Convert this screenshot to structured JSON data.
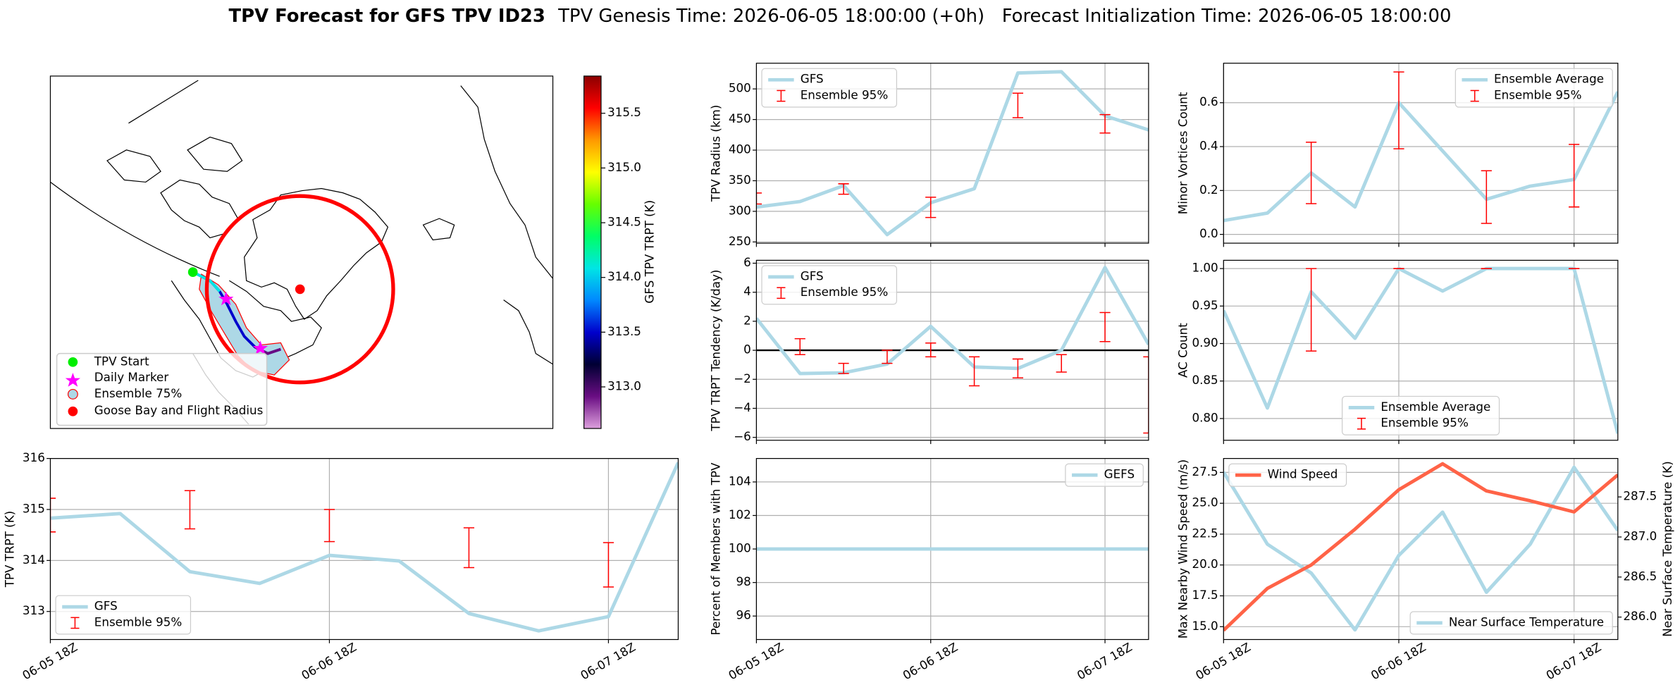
{
  "suptitle": "TPV Forecast for GFS TPV ID23",
  "subtitle": "TPV Genesis Time: 2026-06-05 18:00:00 (+0h)   Forecast Initialization Time: 2026-06-05 18:00:00",
  "map": {
    "legend": [
      "TPV Start",
      "Daily Marker",
      "Ensemble 75%",
      "Goose Bay and Flight Radius"
    ],
    "colorbar": {
      "label": "GFS TPV TRPT (K)",
      "lim": [
        312.62,
        315.84
      ],
      "ticks": [
        {
          "value": 313,
          "label": "313.0"
        },
        313.5,
        {
          "value": 314,
          "label": "314.0"
        },
        314.5,
        {
          "value": 315,
          "label": "315.0"
        },
        315.5
      ],
      "colors": [
        "#dda0dd",
        "#6a0d83",
        "#000033",
        "#0000cc",
        "#0088ff",
        "#00e5e5",
        "#00ff66",
        "#66ff00",
        "#ffff00",
        "#ff9900",
        "#ff0000",
        "#8b0000"
      ]
    }
  },
  "chart_data": [
    {
      "type": "line",
      "ylabel": "TPV Radius (km)",
      "x": [
        0,
        6,
        12,
        18,
        24,
        30,
        36,
        42,
        48,
        54
      ],
      "xlim": [
        0,
        54
      ],
      "xticks": [
        0,
        24,
        48
      ],
      "ylim": [
        248,
        542
      ],
      "yticks": [
        250,
        300,
        350,
        400,
        450,
        500
      ],
      "grid": true,
      "legend": "upper left",
      "series": [
        {
          "name": "GFS",
          "color": "#add8e6",
          "values": [
            307,
            316,
            342,
            262,
            314,
            337,
            526,
            528,
            456,
            433
          ]
        }
      ],
      "errorbars": {
        "name": "Ensemble 95%",
        "color": "#ff0000",
        "x": [
          0,
          12,
          24,
          36,
          48
        ],
        "low": [
          312,
          328,
          290,
          453,
          428
        ],
        "high": [
          330,
          345,
          323,
          493,
          458
        ]
      }
    },
    {
      "type": "line",
      "ylabel": "Minor Vortices Count",
      "x": [
        0,
        6,
        12,
        18,
        24,
        30,
        36,
        42,
        48,
        54
      ],
      "xlim": [
        0,
        54
      ],
      "xticks": [
        0,
        24,
        48
      ],
      "ylim": [
        -0.04,
        0.78
      ],
      "yticks": [
        {
          "value": 0,
          "label": "0.0"
        },
        0.2,
        0.4,
        0.6
      ],
      "grid": true,
      "legend": "upper right",
      "series": [
        {
          "name": "Ensemble Average",
          "color": "#add8e6",
          "values": [
            0.063,
            0.097,
            0.28,
            0.125,
            0.6,
            0.38,
            0.16,
            0.22,
            0.25,
            0.65
          ]
        }
      ],
      "errorbars": {
        "name": "Ensemble 95%",
        "color": "#ff0000",
        "x": [
          12,
          24,
          36,
          48
        ],
        "low": [
          0.14,
          0.39,
          0.05,
          0.125
        ],
        "high": [
          0.42,
          0.74,
          0.29,
          0.41
        ]
      }
    },
    {
      "type": "line",
      "ylabel": "TPV TRPT Tendency (K/day)",
      "x": [
        0,
        6,
        12,
        18,
        24,
        30,
        36,
        42,
        48,
        54
      ],
      "xlim": [
        0,
        54
      ],
      "xticks": [
        0,
        24,
        48
      ],
      "ylim": [
        -6.2,
        6.2
      ],
      "yticks": [
        {
          "value": -6,
          "label": "−6"
        },
        {
          "value": -4,
          "label": "−4"
        },
        {
          "value": -2,
          "label": "−2"
        },
        0,
        2,
        4,
        6
      ],
      "grid": true,
      "legend": "upper left",
      "hline": 0,
      "series": [
        {
          "name": "GFS",
          "color": "#add8e6",
          "values": [
            2.2,
            -1.6,
            -1.55,
            -0.95,
            1.65,
            -1.15,
            -1.25,
            0,
            5.7,
            0.4
          ]
        }
      ],
      "errorbars": {
        "name": "Ensemble 95%",
        "color": "#ff0000",
        "x": [
          6,
          12,
          18,
          24,
          30,
          36,
          42,
          48,
          54
        ],
        "low": [
          -0.3,
          -1.6,
          -0.9,
          -0.45,
          -2.45,
          -1.9,
          -1.5,
          0.6,
          -5.7
        ],
        "high": [
          0.8,
          -0.9,
          0,
          0.5,
          -0.45,
          -0.6,
          -0.3,
          2.6,
          -0.45
        ]
      }
    },
    {
      "type": "line",
      "ylabel": "AC Count",
      "x": [
        0,
        6,
        12,
        18,
        24,
        30,
        36,
        42,
        48,
        54
      ],
      "xlim": [
        0,
        54
      ],
      "xticks": [
        0,
        24,
        48
      ],
      "ylim": [
        0.771,
        1.011
      ],
      "yticks": [
        {
          "value": 0.8,
          "label": "0.80"
        },
        0.85,
        {
          "value": 0.9,
          "label": "0.90"
        },
        0.95,
        {
          "value": 1,
          "label": "1.00"
        }
      ],
      "grid": true,
      "legend": "lower center",
      "series": [
        {
          "name": "Ensemble Average",
          "color": "#add8e6",
          "values": [
            0.944,
            0.814,
            0.969,
            0.907,
            1.0,
            0.97,
            1.0,
            1.0,
            1.0,
            0.78
          ]
        }
      ],
      "errorbars": {
        "name": "Ensemble 95%",
        "color": "#ff0000",
        "x": [
          12,
          24,
          36,
          48
        ],
        "low": [
          0.89,
          1,
          1,
          1
        ],
        "high": [
          1,
          1,
          1,
          1
        ]
      }
    },
    {
      "type": "line",
      "ylabel": "TPV TRPT (K)",
      "x": [
        0,
        6,
        12,
        18,
        24,
        30,
        36,
        42,
        48,
        54
      ],
      "xlim": [
        0,
        54
      ],
      "xticks": [
        {
          "value": 0,
          "label": "06-05 18Z"
        },
        {
          "value": 24,
          "label": "06-06 18Z"
        },
        {
          "value": 48,
          "label": "06-07 18Z"
        }
      ],
      "ylim": [
        312.45,
        316
      ],
      "yticks": [
        313,
        314,
        315,
        316
      ],
      "grid": true,
      "legend": "lower left",
      "series": [
        {
          "name": "GFS",
          "color": "#add8e6",
          "values": [
            314.83,
            314.92,
            313.78,
            313.55,
            314.1,
            313.99,
            312.96,
            312.62,
            312.9,
            315.92
          ]
        }
      ],
      "errorbars": {
        "name": "Ensemble 95%",
        "color": "#ff0000",
        "x": [
          0,
          12,
          24,
          36,
          48
        ],
        "low": [
          314.56,
          314.62,
          314.37,
          313.86,
          313.48
        ],
        "high": [
          315.22,
          315.37,
          315.0,
          314.64,
          314.35
        ]
      }
    },
    {
      "type": "line",
      "ylabel": "Percent of Members with TPV",
      "x": [
        0,
        6,
        12,
        18,
        24,
        30,
        36,
        42,
        48,
        54
      ],
      "xlim": [
        0,
        54
      ],
      "xticks": [
        {
          "value": 0,
          "label": "06-05 18Z"
        },
        {
          "value": 24,
          "label": "06-06 18Z"
        },
        {
          "value": 48,
          "label": "06-07 18Z"
        }
      ],
      "ylim": [
        94.6,
        105.4
      ],
      "yticks": [
        96,
        98,
        100,
        102,
        104
      ],
      "grid": true,
      "legend": "upper right",
      "series": [
        {
          "name": "GEFS",
          "color": "#add8e6",
          "values": [
            100,
            100,
            100,
            100,
            100,
            100,
            100,
            100,
            100,
            100
          ]
        }
      ]
    },
    {
      "type": "line",
      "ylabel": "Max Nearby Wind Speed (m/s)",
      "ylabel_color": "#ff6347",
      "y2label": "Near Surface Temperature (K)",
      "y2label_color": "#4169e1",
      "x": [
        0,
        6,
        12,
        18,
        24,
        30,
        36,
        42,
        48,
        54
      ],
      "xlim": [
        0,
        54
      ],
      "xticks": [
        {
          "value": 0,
          "label": "06-05 18Z"
        },
        {
          "value": 24,
          "label": "06-06 18Z"
        },
        {
          "value": 48,
          "label": "06-07 18Z"
        }
      ],
      "ylim": [
        13.96,
        28.63
      ],
      "yticks": [
        {
          "value": 15,
          "label": "15.0"
        },
        17.5,
        {
          "value": 20,
          "label": "20.0"
        },
        22.5,
        {
          "value": 25,
          "label": "25.0"
        },
        27.5
      ],
      "y2lim": [
        285.72,
        287.98
      ],
      "y2ticks": [
        {
          "value": 286,
          "label": "286.0"
        },
        286.5,
        {
          "value": 287,
          "label": "287.0"
        },
        287.5
      ],
      "grid": true,
      "series": [
        {
          "name": "Near Surface Temperature",
          "color": "#add8e6",
          "axis": "y2",
          "legend": "lower right",
          "values": [
            287.81,
            286.91,
            286.55,
            285.84,
            286.77,
            287.31,
            286.31,
            286.91,
            287.87,
            287.08
          ]
        },
        {
          "name": "Wind Speed",
          "color": "#ff6347",
          "legend": "upper left",
          "values": [
            14.7,
            18.1,
            20.0,
            22.9,
            26.1,
            28.2,
            26.0,
            25.2,
            24.3,
            27.3
          ]
        }
      ]
    }
  ]
}
